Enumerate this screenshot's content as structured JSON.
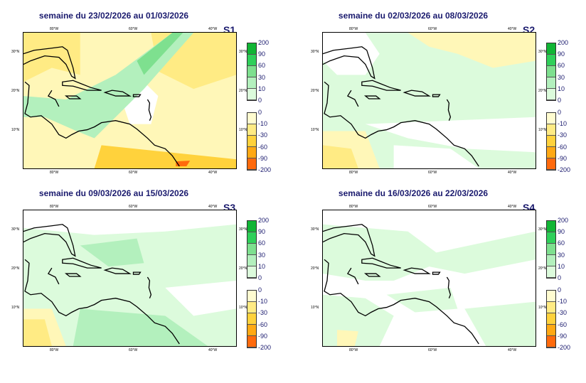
{
  "panels": [
    {
      "id": "S1",
      "title": "semaine du 23/02/2026 au 01/03/2026",
      "pattern": "dry"
    },
    {
      "id": "S2",
      "title": "semaine du 02/03/2026 au 08/03/2026",
      "pattern": "mixed"
    },
    {
      "id": "S3",
      "title": "semaine du 09/03/2026 au 15/03/2026",
      "pattern": "wet"
    },
    {
      "id": "S4",
      "title": "semaine du 16/03/2026 au 22/03/2026",
      "pattern": "neutral"
    }
  ],
  "axes": {
    "x_ticks": [
      "80°W",
      "60°W",
      "40°W"
    ],
    "y_ticks": [
      "30°N",
      "20°N",
      "10°N"
    ]
  },
  "legend": {
    "positive": {
      "labels": [
        "200",
        "90",
        "60",
        "30",
        "10",
        "0"
      ],
      "colors": [
        "#11b535",
        "#2fd05a",
        "#7ee08f",
        "#b3f0bd",
        "#dcfbdc"
      ]
    },
    "negative": {
      "labels": [
        "0",
        "-10",
        "-30",
        "-60",
        "-90",
        "-200"
      ],
      "colors": [
        "#fffcd0",
        "#ffeb84",
        "#ffd23c",
        "#ffa914",
        "#ff6a0c"
      ]
    }
  },
  "chart_data": [
    {
      "type": "heatmap",
      "title": "semaine du 23/02/2026 au 01/03/2026",
      "label": "S1",
      "legend_placement": "right"
    },
    {
      "type": "heatmap",
      "title": "semaine du 02/03/2026 au 08/03/2026",
      "label": "S2",
      "legend_placement": "right"
    },
    {
      "type": "heatmap",
      "title": "semaine du 09/03/2026 au 15/03/2026",
      "label": "S3",
      "legend_placement": "right"
    },
    {
      "type": "heatmap",
      "title": "semaine du 16/03/2026 au 22/03/2026",
      "label": "S4",
      "legend_placement": "right"
    }
  ]
}
